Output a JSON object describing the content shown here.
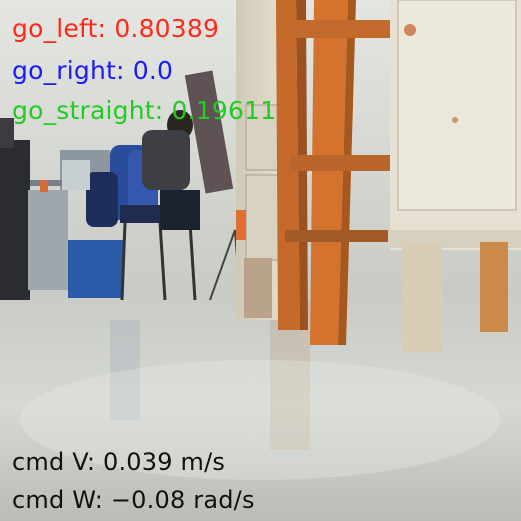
{
  "predictions": {
    "left": {
      "label": "go_left: 0.80389",
      "color": "#ff2a1a"
    },
    "right": {
      "label": "go_right: 0.0",
      "color": "#1a1aff"
    },
    "straight": {
      "label": "go_straight: 0.19611",
      "color": "#22cc22"
    }
  },
  "commands": {
    "v": {
      "label": "cmd V: 0.039 m/s",
      "color": "#111111"
    },
    "w": {
      "label": "cmd W: −0.08 rad/s",
      "color": "#111111"
    }
  }
}
